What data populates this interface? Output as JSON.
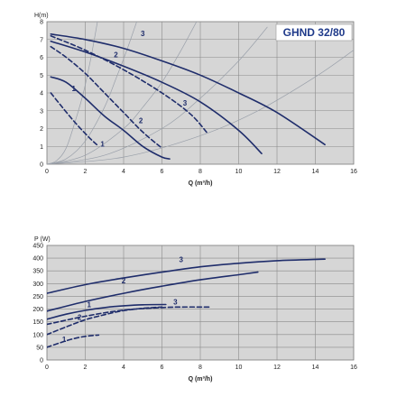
{
  "chart_data": [
    {
      "type": "line",
      "title": "GHND 32/80",
      "xlabel": "Q (m³/h)",
      "ylabel": "H(m)",
      "xlim": [
        0,
        16
      ],
      "ylim": [
        0,
        8
      ],
      "xticks": [
        "0",
        "2",
        "4",
        "6",
        "8",
        "10",
        "12",
        "14",
        "16"
      ],
      "yticks": [
        "0",
        "1",
        "2",
        "3",
        "4",
        "5",
        "6",
        "7",
        "8"
      ],
      "grid": true,
      "series": [
        {
          "name": "3",
          "style": "solid",
          "label_at": [
            5.0,
            7.2
          ],
          "points": [
            [
              0.2,
              7.3
            ],
            [
              2,
              7.0
            ],
            [
              4,
              6.5
            ],
            [
              6,
              5.8
            ],
            [
              8,
              5.0
            ],
            [
              10,
              4.0
            ],
            [
              12,
              2.9
            ],
            [
              14.5,
              1.1
            ]
          ]
        },
        {
          "name": "2",
          "style": "solid",
          "label_at": [
            3.6,
            6.0
          ],
          "points": [
            [
              0.2,
              6.9
            ],
            [
              2,
              6.3
            ],
            [
              4,
              5.5
            ],
            [
              6,
              4.6
            ],
            [
              8,
              3.5
            ],
            [
              10,
              1.9
            ],
            [
              11.2,
              0.6
            ]
          ]
        },
        {
          "name": "1",
          "style": "solid",
          "label_at": [
            1.4,
            4.1
          ],
          "points": [
            [
              0.2,
              4.9
            ],
            [
              1,
              4.6
            ],
            [
              2,
              3.7
            ],
            [
              3,
              2.7
            ],
            [
              4,
              1.9
            ],
            [
              5,
              1.0
            ],
            [
              6,
              0.4
            ],
            [
              6.4,
              0.3
            ]
          ]
        },
        {
          "name": "3",
          "style": "dashed",
          "label_at": [
            7.2,
            3.3
          ],
          "points": [
            [
              0.2,
              7.2
            ],
            [
              2,
              6.4
            ],
            [
              4,
              5.3
            ],
            [
              6,
              4.0
            ],
            [
              7.5,
              2.8
            ],
            [
              8.4,
              1.7
            ]
          ]
        },
        {
          "name": "2",
          "style": "dashed",
          "label_at": [
            4.9,
            2.3
          ],
          "points": [
            [
              0.2,
              6.6
            ],
            [
              1,
              6.0
            ],
            [
              2,
              5.1
            ],
            [
              3,
              4.0
            ],
            [
              4,
              2.9
            ],
            [
              5,
              1.8
            ],
            [
              6,
              0.9
            ]
          ]
        },
        {
          "name": "1",
          "style": "dashed",
          "label_at": [
            2.9,
            1.0
          ],
          "points": [
            [
              0.2,
              4.0
            ],
            [
              0.8,
              3.2
            ],
            [
              1.5,
              2.3
            ],
            [
              2.2,
              1.5
            ],
            [
              2.6,
              1.1
            ]
          ]
        }
      ],
      "system_curves": [
        {
          "name": "system-curve-1",
          "points": [
            [
              0,
              0
            ],
            [
              0.5,
              0.2
            ],
            [
              1,
              0.9
            ],
            [
              1.5,
              2.5
            ],
            [
              1.9,
              4
            ],
            [
              2.3,
              6
            ],
            [
              2.7,
              8.4
            ]
          ]
        },
        {
          "name": "system-curve-2",
          "points": [
            [
              0,
              0
            ],
            [
              1,
              0.3
            ],
            [
              2,
              1.3
            ],
            [
              3,
              3.2
            ],
            [
              3.6,
              4.8
            ],
            [
              4.2,
              6.5
            ],
            [
              5,
              9
            ]
          ]
        },
        {
          "name": "system-curve-3",
          "points": [
            [
              0,
              0
            ],
            [
              2,
              0.5
            ],
            [
              4,
              2
            ],
            [
              5,
              3.2
            ],
            [
              6,
              4.6
            ],
            [
              7,
              6.4
            ],
            [
              8,
              8.4
            ]
          ]
        },
        {
          "name": "system-curve-4",
          "points": [
            [
              0,
              0
            ],
            [
              3,
              0.5
            ],
            [
              6,
              2
            ],
            [
              8,
              3.7
            ],
            [
              10,
              5.8
            ],
            [
              11.5,
              7.7
            ]
          ]
        },
        {
          "name": "system-curve-5",
          "points": [
            [
              0,
              0
            ],
            [
              4,
              0.4
            ],
            [
              8,
              1.6
            ],
            [
              11,
              3
            ],
            [
              14,
              4.9
            ],
            [
              16,
              6.4
            ]
          ]
        }
      ]
    },
    {
      "type": "line",
      "xlabel": "Q (m³/h)",
      "ylabel": "P (W)",
      "xlim": [
        0,
        16
      ],
      "ylim": [
        0,
        450
      ],
      "xticks": [
        "0",
        "2",
        "4",
        "6",
        "8",
        "10",
        "12",
        "14",
        "16"
      ],
      "yticks": [
        "0",
        "50",
        "100",
        "150",
        "200",
        "250",
        "300",
        "350",
        "400",
        "450"
      ],
      "grid": true,
      "series": [
        {
          "name": "3",
          "style": "solid",
          "label_at": [
            7.0,
            385
          ],
          "points": [
            [
              0,
              262
            ],
            [
              2,
              296
            ],
            [
              4,
              322
            ],
            [
              6,
              345
            ],
            [
              8,
              366
            ],
            [
              10,
              380
            ],
            [
              12,
              390
            ],
            [
              14.5,
              396
            ]
          ]
        },
        {
          "name": "2",
          "style": "solid",
          "label_at": [
            4.0,
            302
          ],
          "points": [
            [
              0,
              192
            ],
            [
              2,
              230
            ],
            [
              4,
              262
            ],
            [
              6,
              290
            ],
            [
              8,
              315
            ],
            [
              10,
              335
            ],
            [
              11,
              345
            ]
          ]
        },
        {
          "name": "1",
          "style": "solid",
          "label_at": [
            2.2,
            208
          ],
          "points": [
            [
              0,
              160
            ],
            [
              1,
              180
            ],
            [
              2,
              195
            ],
            [
              3,
              206
            ],
            [
              4,
              213
            ],
            [
              5,
              217
            ],
            [
              6.2,
              218
            ]
          ]
        },
        {
          "name": "3",
          "style": "dashed",
          "label_at": [
            6.7,
            218
          ],
          "points": [
            [
              0,
              140
            ],
            [
              2,
              172
            ],
            [
              4,
              196
            ],
            [
              6,
              206
            ],
            [
              7,
              208
            ],
            [
              8.5,
              208
            ]
          ]
        },
        {
          "name": "2",
          "style": "dashed",
          "label_at": [
            1.7,
            158
          ],
          "points": [
            [
              0,
              100
            ],
            [
              1,
              130
            ],
            [
              2,
              158
            ],
            [
              3,
              178
            ],
            [
              4,
              194
            ],
            [
              5,
              203
            ],
            [
              6,
              208
            ]
          ]
        },
        {
          "name": "1",
          "style": "dashed",
          "label_at": [
            0.9,
            70
          ],
          "points": [
            [
              0,
              50
            ],
            [
              0.7,
              68
            ],
            [
              1.3,
              82
            ],
            [
              2,
              93
            ],
            [
              2.7,
              98
            ]
          ]
        }
      ]
    }
  ]
}
